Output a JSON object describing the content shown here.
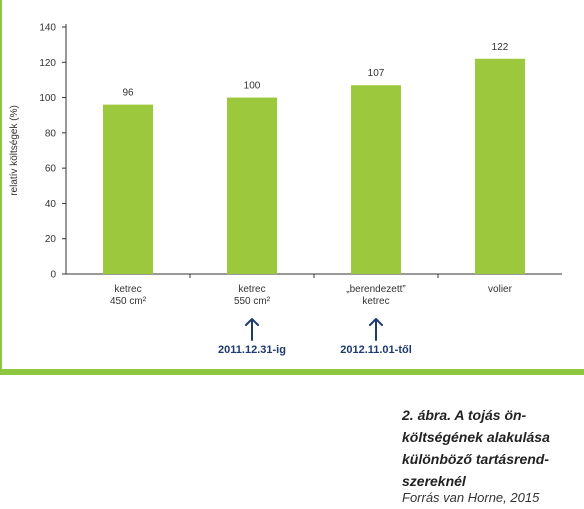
{
  "chart_data": {
    "type": "bar",
    "categories": [
      [
        "ketrec",
        "450 cm²"
      ],
      [
        "ketrec",
        "550 cm²"
      ],
      [
        "„berendezett”",
        "ketrec"
      ],
      [
        "volier"
      ]
    ],
    "values": [
      96,
      100,
      107,
      122
    ],
    "ylabel": "relatív költségek (%)",
    "yticks": [
      0,
      20,
      40,
      60,
      80,
      100,
      120,
      140
    ],
    "ylim": [
      0,
      140
    ],
    "grid": false,
    "colors": {
      "bar": "#9bc83c",
      "annotation": "#1f3a6e",
      "frame": "#8dc63f"
    },
    "annotations": [
      {
        "category_index": 1,
        "label": "2011.12.31-ig",
        "icon": "arrow-up-icon"
      },
      {
        "category_index": 2,
        "label": "2012.11.01-től",
        "icon": "arrow-up-icon"
      }
    ]
  },
  "caption": {
    "lines": [
      "2. ábra. A tojás ön-",
      "költségének alakulása",
      "különböző tartásrend-",
      "szereknél"
    ],
    "source": "Forrás van Horne, 2015"
  }
}
